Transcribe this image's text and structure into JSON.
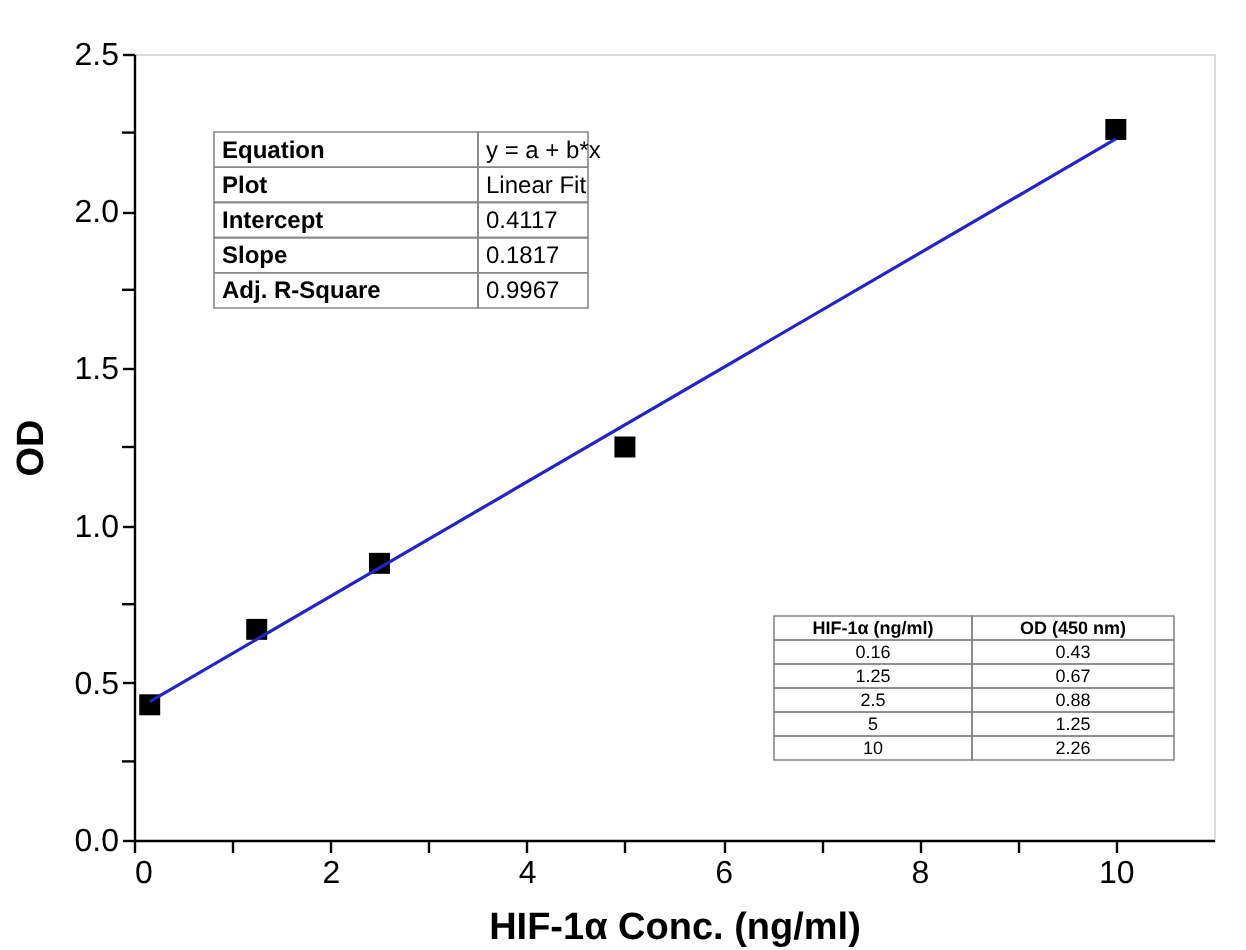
{
  "chart_data": {
    "type": "scatter",
    "xlabel": "HIF-1α Conc. (ng/ml)",
    "ylabel": "OD",
    "x": [
      0.16,
      1.25,
      2.5,
      5,
      10
    ],
    "series": [
      {
        "color": "#000000",
        "marker": "square",
        "values": [
          0.43,
          0.67,
          0.88,
          1.25,
          2.26
        ]
      },
      {
        "type": "line",
        "color": "#2323c8",
        "line_style": "solid",
        "x": [
          0.16,
          10
        ],
        "values": [
          0.44,
          2.23
        ]
      }
    ],
    "xlim": [
      0,
      11
    ],
    "ylim": [
      0,
      2.5
    ],
    "xticks": [
      0,
      {
        "value": 1,
        "label": null
      },
      2,
      {
        "value": 3,
        "label": null
      },
      4,
      {
        "value": 5,
        "label": null
      },
      6,
      {
        "value": 7,
        "label": null
      },
      8,
      {
        "value": 9,
        "label": null
      },
      10
    ],
    "yticks": [
      {
        "value": 0,
        "label": "0.0"
      },
      {
        "value": 0.25,
        "label": null
      },
      0.5,
      {
        "value": 0.75,
        "label": null
      },
      {
        "value": 1,
        "label": "1.0"
      },
      {
        "value": 1.25,
        "label": null
      },
      1.5,
      {
        "value": 1.75,
        "label": null
      },
      {
        "value": 2,
        "label": "2.0"
      },
      {
        "value": 2.25,
        "label": null
      },
      2.5
    ],
    "grid": false,
    "annotations": [
      "Equation",
      "y = a + b*x",
      "Plot",
      "Linear Fit",
      "Intercept",
      "0.4117",
      "Slope",
      "0.1817",
      "Adj. R-Square",
      "0.9967",
      "HIF-1α (ng/ml)",
      "OD (450 nm)",
      "0.16",
      "0.43",
      "1.25",
      "0.67",
      "2.5",
      "0.88",
      "5",
      "1.25",
      "10",
      "2.26"
    ]
  }
}
